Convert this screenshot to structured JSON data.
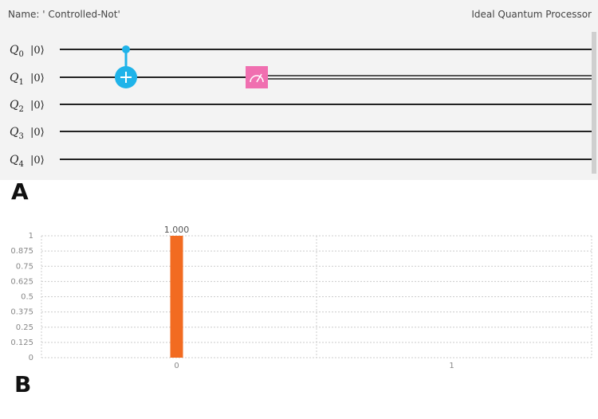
{
  "circuit": {
    "name": "Name: ' Controlled-Not'",
    "processor": "Ideal Quantum Processor",
    "qubits": [
      {
        "name": "Q",
        "subscript": "0",
        "state": "|0⟩"
      },
      {
        "name": "Q",
        "subscript": "1",
        "state": "|0⟩"
      },
      {
        "name": "Q",
        "subscript": "2",
        "state": "|0⟩"
      },
      {
        "name": "Q",
        "subscript": "3",
        "state": "|0⟩"
      },
      {
        "name": "Q",
        "subscript": "4",
        "state": "|0⟩"
      }
    ]
  },
  "panels": [
    "A",
    "B"
  ],
  "chart_data": {
    "type": "bar",
    "categories": [
      "0",
      "1"
    ],
    "values": [
      1,
      0
    ],
    "value_labels": [
      "1.000",
      null
    ],
    "color": "#f26b21",
    "ylim": [
      0,
      1
    ],
    "yticks": [
      0,
      0.125,
      0.25,
      0.375,
      0.5,
      0.625,
      0.75,
      0.875,
      1
    ],
    "grid": true
  }
}
